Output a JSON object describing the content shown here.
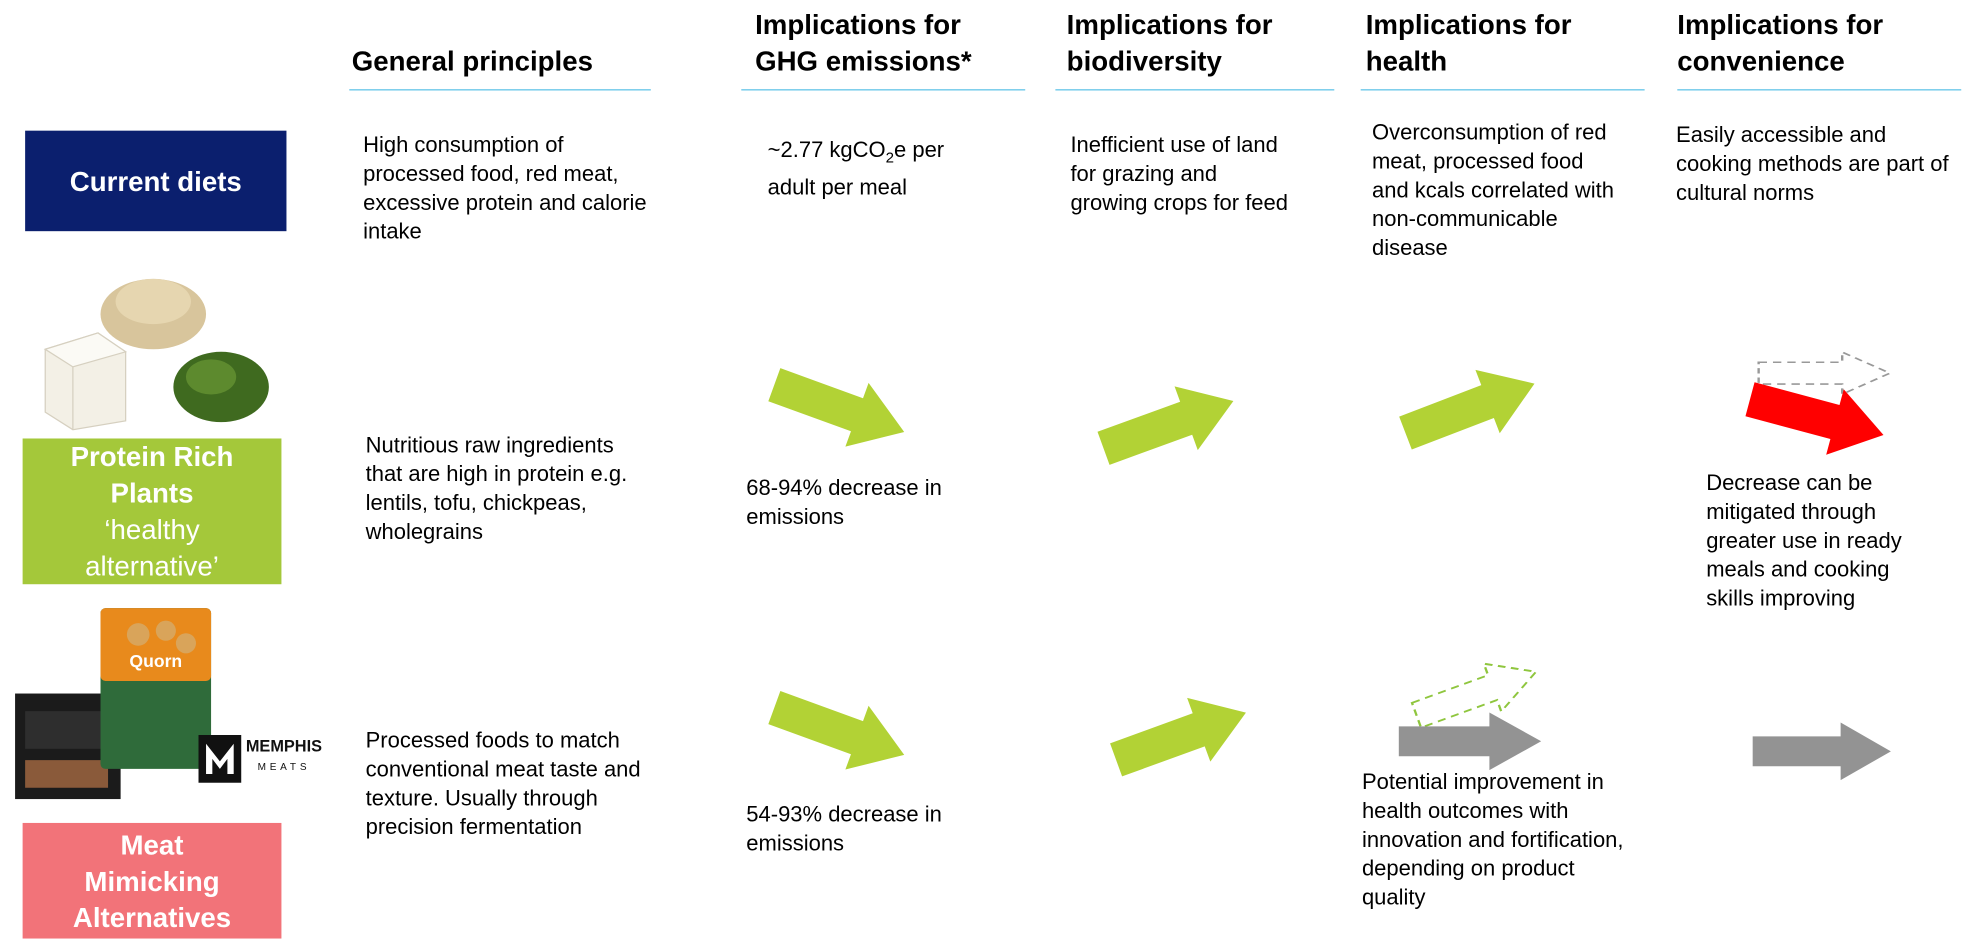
{
  "headers": [
    "General principles",
    "Implications for GHG emissions*",
    "Implications for biodiversity",
    "Implications for health",
    "Implications for convenience"
  ],
  "rows": [
    {
      "label": "Current diets",
      "general": "High consumption of processed food, red meat, excessive protein and calorie intake",
      "ghg": {
        "before": "~2.77 kgCO",
        "sub": "2",
        "after": "e per adult per meal"
      },
      "biodiversity": "Inefficient use of land for grazing and growing crops for feed",
      "health": "Overconsumption of red meat, processed food and kcals correlated with non-communicable disease",
      "convenience": "Easily accessible and cooking methods are part of cultural norms"
    },
    {
      "label": "Protein Rich Plants",
      "sublabel": "‘healthy alternative’",
      "general": "Nutritious raw ingredients that are high in protein e.g. lentils, tofu, chickpeas, wholegrains",
      "ghg": "68-94% decrease in emissions",
      "convenience": "Decrease can be mitigated through greater use in ready meals and cooking skills improving"
    },
    {
      "label": "Meat Mimicking Alternatives",
      "general": "Processed foods to match conventional meat taste and texture. Usually through precision fermentation",
      "ghg": "54-93% decrease in emissions",
      "health": "Potential improvement in health outcomes with innovation and fortification, depending on product quality"
    }
  ],
  "logos": {
    "quorn": "Quorn",
    "memphis": "MEMPHIS",
    "meats": "MEATS"
  }
}
